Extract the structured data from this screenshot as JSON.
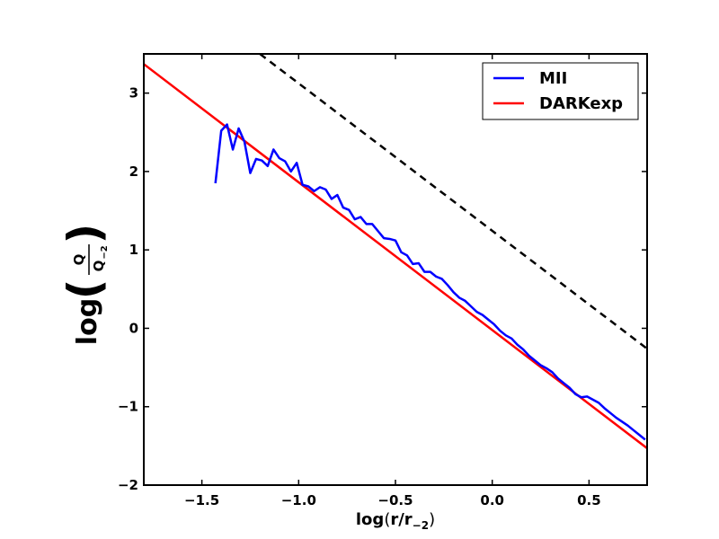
{
  "chart_data": {
    "type": "line",
    "title": "",
    "xlabel": {
      "base": "log",
      "open": "(",
      "main": "r/r",
      "sub": "−2",
      "close": ")"
    },
    "ylabel": {
      "base": "log",
      "numerator": "Q",
      "denominator": "Q",
      "denominator_sub": "−2"
    },
    "xlim": [
      -1.8,
      0.8
    ],
    "ylim": [
      -2,
      3.5
    ],
    "xticks": [
      {
        "value": -1.5,
        "label": "−1.5"
      },
      {
        "value": -1.0,
        "label": "−1.0"
      },
      {
        "value": -0.5,
        "label": "−0.5"
      },
      {
        "value": 0.0,
        "label": "0.0"
      },
      {
        "value": 0.5,
        "label": "0.5"
      }
    ],
    "yticks": [
      {
        "value": -2,
        "label": "−2"
      },
      {
        "value": -1,
        "label": "−1"
      },
      {
        "value": 0,
        "label": "0"
      },
      {
        "value": 1,
        "label": "1"
      },
      {
        "value": 2,
        "label": "2"
      },
      {
        "value": 3,
        "label": "3"
      }
    ],
    "grid": false,
    "legend_position": "top-right",
    "series": [
      {
        "name": "MII",
        "color": "#0000ff",
        "style": "solid",
        "x": [
          -1.43,
          -1.4,
          -1.37,
          -1.34,
          -1.31,
          -1.28,
          -1.25,
          -1.22,
          -1.19,
          -1.16,
          -1.13,
          -1.1,
          -1.07,
          -1.04,
          -1.01,
          -0.98,
          -0.95,
          -0.92,
          -0.89,
          -0.86,
          -0.83,
          -0.8,
          -0.77,
          -0.74,
          -0.71,
          -0.68,
          -0.65,
          -0.62,
          -0.59,
          -0.56,
          -0.53,
          -0.5,
          -0.47,
          -0.44,
          -0.41,
          -0.38,
          -0.35,
          -0.32,
          -0.29,
          -0.26,
          -0.23,
          -0.2,
          -0.17,
          -0.14,
          -0.11,
          -0.08,
          -0.05,
          -0.02,
          0.01,
          0.04,
          0.07,
          0.1,
          0.13,
          0.16,
          0.19,
          0.22,
          0.25,
          0.28,
          0.31,
          0.34,
          0.37,
          0.4,
          0.43,
          0.46,
          0.49,
          0.52,
          0.55,
          0.58,
          0.61,
          0.64,
          0.67,
          0.7,
          0.73,
          0.76,
          0.79
        ],
        "y": [
          1.85,
          2.52,
          2.6,
          2.28,
          2.55,
          2.38,
          1.98,
          2.16,
          2.14,
          2.07,
          2.28,
          2.17,
          2.13,
          2.0,
          2.11,
          1.83,
          1.81,
          1.75,
          1.8,
          1.77,
          1.65,
          1.7,
          1.54,
          1.51,
          1.39,
          1.42,
          1.33,
          1.33,
          1.24,
          1.15,
          1.14,
          1.12,
          0.97,
          0.93,
          0.82,
          0.83,
          0.72,
          0.72,
          0.66,
          0.63,
          0.55,
          0.46,
          0.39,
          0.35,
          0.28,
          0.21,
          0.17,
          0.11,
          0.05,
          -0.03,
          -0.09,
          -0.13,
          -0.21,
          -0.27,
          -0.35,
          -0.41,
          -0.47,
          -0.51,
          -0.56,
          -0.64,
          -0.7,
          -0.76,
          -0.84,
          -0.88,
          -0.87,
          -0.91,
          -0.95,
          -1.02,
          -1.08,
          -1.14,
          -1.19,
          -1.24,
          -1.3,
          -1.36,
          -1.42
        ]
      },
      {
        "name": "DARKexp",
        "color": "#ff0000",
        "style": "solid",
        "x": [
          -1.8,
          0.8
        ],
        "y": [
          3.37,
          -1.53
        ]
      },
      {
        "color": "#000000",
        "style": "dashed",
        "x": [
          -1.2,
          0.8
        ],
        "y": [
          3.5,
          -0.26
        ]
      }
    ]
  }
}
